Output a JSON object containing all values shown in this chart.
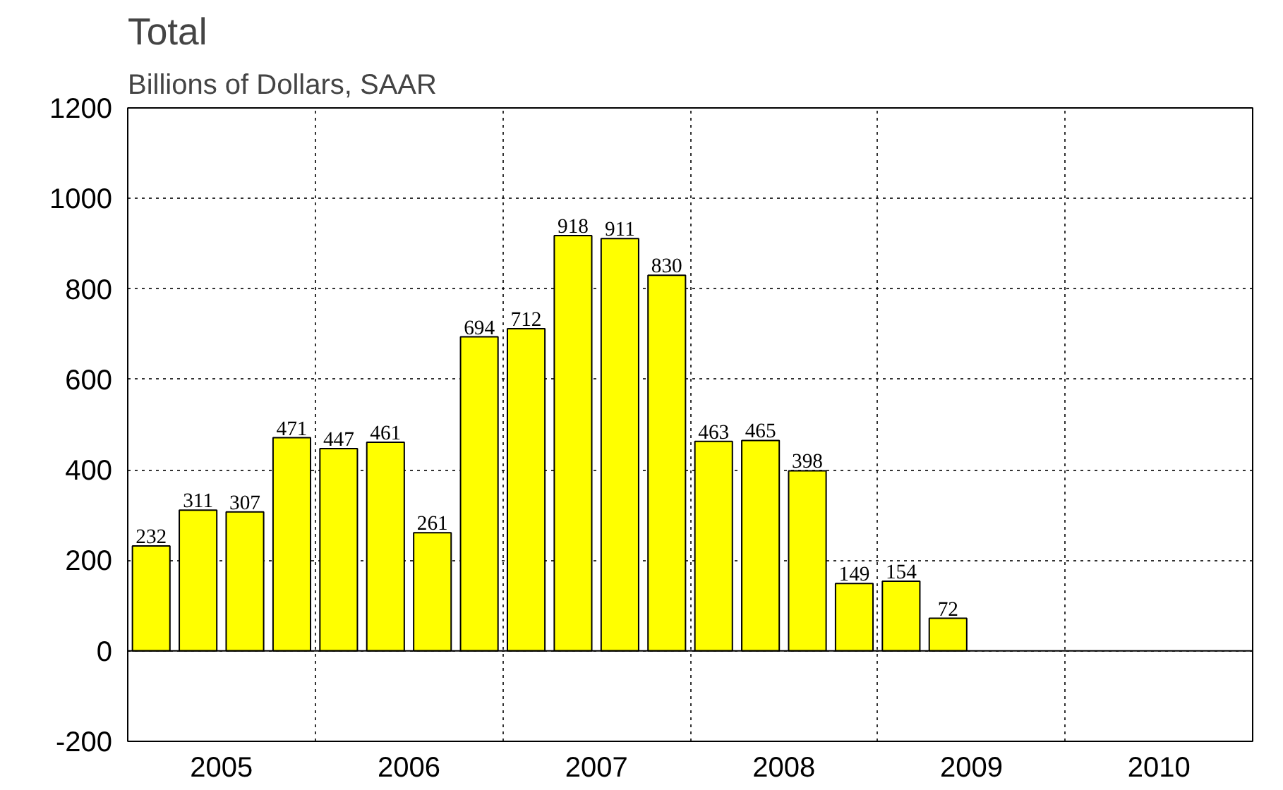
{
  "chart_data": {
    "type": "bar",
    "title": "Total",
    "subtitle": "Billions of Dollars, SAAR",
    "x": [
      2005.125,
      2005.375,
      2005.625,
      2005.875,
      2006.125,
      2006.375,
      2006.625,
      2006.875,
      2007.125,
      2007.375,
      2007.625,
      2007.875,
      2008.125,
      2008.375,
      2008.625,
      2008.875,
      2009.125,
      2009.375
    ],
    "values": [
      232,
      311,
      307,
      471,
      447,
      461,
      261,
      694,
      712,
      918,
      911,
      830,
      463,
      465,
      398,
      149,
      154,
      72
    ],
    "color": "#ffff00",
    "data_labels": true,
    "xlim": [
      2005,
      2011
    ],
    "xticks": [
      {
        "value": 2006,
        "label": null
      },
      {
        "value": 2007,
        "label": null
      },
      {
        "value": 2008,
        "label": null
      },
      {
        "value": 2009,
        "label": null
      },
      {
        "value": 2010,
        "label": null
      },
      {
        "value": 2005.5,
        "label": "2005"
      },
      {
        "value": 2006.5,
        "label": "2006"
      },
      {
        "value": 2007.5,
        "label": "2007"
      },
      {
        "value": 2008.5,
        "label": "2008"
      },
      {
        "value": 2009.5,
        "label": "2009"
      },
      {
        "value": 2010.5,
        "label": "2010"
      }
    ],
    "ylim": [
      -200,
      1200
    ],
    "yticks": [
      -200,
      0,
      200,
      400,
      600,
      800,
      1000,
      1200
    ],
    "ref_lines": [
      {
        "axis": "y",
        "value": 0,
        "color": "#000000"
      }
    ],
    "grid": true
  }
}
